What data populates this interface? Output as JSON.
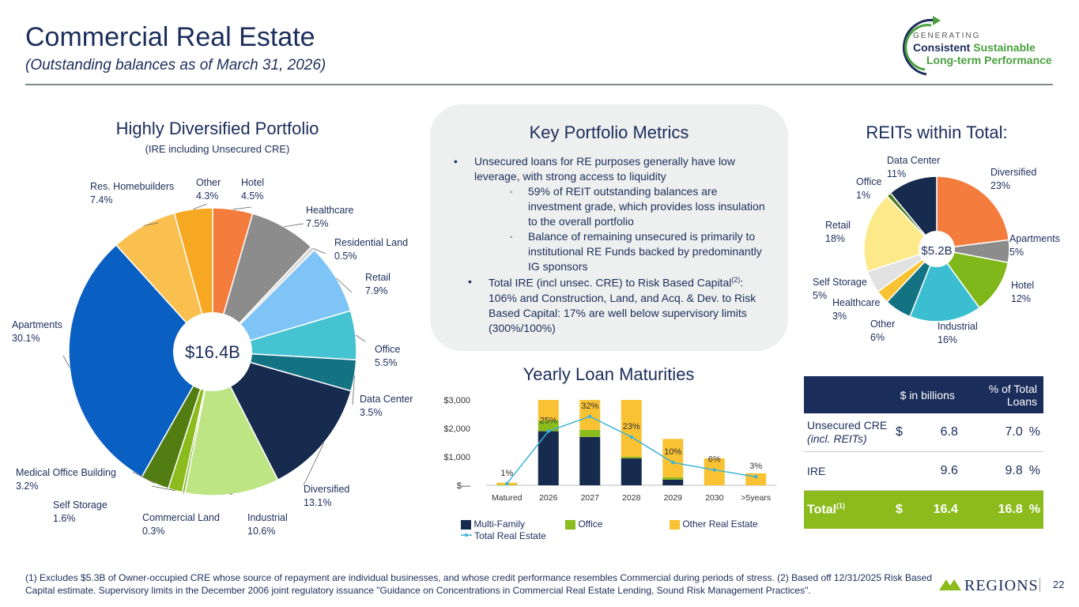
{
  "header": {
    "title": "Commercial Real Estate",
    "subtitle": "(Outstanding balances as of March 31, 2026)",
    "logo_line1": "GENERATING",
    "logo_line2a": "Consistent",
    "logo_line2b": "Sustainable",
    "logo_line3": "Long-term Performance"
  },
  "portfolio": {
    "heading": "Highly Diversified Portfolio",
    "subheading": "(IRE including Unsecured CRE)",
    "center_label": "$16.4B"
  },
  "metrics": {
    "heading": "Key Portfolio Metrics",
    "bullet1": "Unsecured loans for RE purposes generally have low leverage, with strong access to liquidity",
    "sub1": "59% of REIT outstanding balances are investment grade, which provides loss insulation to the overall portfolio",
    "sub2": "Balance of remaining unsecured is primarily to institutional RE Funds backed by predominantly IG sponsors",
    "bullet2_pre": "Total IRE (incl unsec. CRE) to Risk Based Capital",
    "bullet2_sup": "(2)",
    "bullet2_post": ": 106% and Construction, Land, and Acq. & Dev. to Risk Based Capital: 17% are well below supervisory limits (300%/100%)"
  },
  "reits": {
    "heading": "REITs within Total:",
    "center_label": "$5.2B"
  },
  "maturities": {
    "heading": "Yearly Loan Maturities",
    "legend": {
      "multifamily": "Multi-Family",
      "office": "Office",
      "other": "Other Real Estate",
      "total": "Total Real Estate"
    }
  },
  "table": {
    "col1": "$ in billions",
    "col2": "% of Total Loans",
    "rows": [
      {
        "label": "Unsecured CRE",
        "label2": "(incl. REITs)",
        "cur": "$",
        "value": "6.8",
        "pct": "7.0",
        "pct_sign": "%"
      },
      {
        "label": "IRE",
        "label2": "",
        "cur": "",
        "value": "9.6",
        "pct": "9.8",
        "pct_sign": "%"
      }
    ],
    "total": {
      "label": "Total",
      "sup": "(1)",
      "cur": "$",
      "value": "16.4",
      "pct": "16.8",
      "pct_sign": "%"
    }
  },
  "footer": {
    "footnote": "(1) Excludes $5.3B of Owner-occupied CRE whose source of repayment are individual businesses, and whose credit performance resembles Commercial during periods of stress. (2) Based off 12/31/2025 Risk Based Capital estimate. Supervisory limits in the December 2006 joint regulatory issuance \"Guidance on Concentrations in Commercial Real Estate Lending, Sound Risk Management Practices\".",
    "brand": "REGIONS",
    "page": "22"
  },
  "colors": {
    "navy": "#1b2d5a",
    "green": "#8bbb1c",
    "yellow": "#f9c233",
    "teal_line": "#3bb2d6"
  },
  "chart_data": [
    {
      "type": "pie",
      "title": "Highly Diversified Portfolio",
      "slices": [
        {
          "label": "Hotel",
          "value": 4.5,
          "color": "#f47c3c"
        },
        {
          "label": "Healthcare",
          "value": 7.5,
          "color": "#8c8c8c"
        },
        {
          "label": "Residential Land",
          "value": 0.5,
          "color": "#d9d9d9"
        },
        {
          "label": "Retail",
          "value": 7.9,
          "color": "#7fc4f7"
        },
        {
          "label": "Office",
          "value": 5.5,
          "color": "#45c3d1"
        },
        {
          "label": "Data Center",
          "value": 3.5,
          "color": "#147383"
        },
        {
          "label": "Diversified",
          "value": 13.1,
          "color": "#172b4f"
        },
        {
          "label": "Industrial",
          "value": 10.6,
          "color": "#bde584"
        },
        {
          "label": "Commercial Land",
          "value": 0.3,
          "color": "#7faa23"
        },
        {
          "label": "Self Storage",
          "value": 1.6,
          "color": "#8bbb1c"
        },
        {
          "label": "Medical Office Building",
          "value": 3.2,
          "color": "#527d12"
        },
        {
          "label": "Apartments",
          "value": 30.1,
          "color": "#0a5fc2"
        },
        {
          "label": "Res. Homebuilders",
          "value": 7.4,
          "color": "#f9c04f"
        },
        {
          "label": "Other",
          "value": 4.3,
          "color": "#f7a823"
        }
      ]
    },
    {
      "type": "pie",
      "title": "REITs within Total:",
      "slices": [
        {
          "label": "Diversified",
          "value": 23,
          "color": "#f47c3c"
        },
        {
          "label": "Apartments",
          "value": 5,
          "color": "#8c8c8c"
        },
        {
          "label": "Hotel",
          "value": 12,
          "color": "#80b71b"
        },
        {
          "label": "Industrial",
          "value": 16,
          "color": "#3bbfd0"
        },
        {
          "label": "Other",
          "value": 6,
          "color": "#147383"
        },
        {
          "label": "Healthcare",
          "value": 3,
          "color": "#f9c233"
        },
        {
          "label": "Self Storage",
          "value": 5,
          "color": "#e2e2e2"
        },
        {
          "label": "Retail",
          "value": 18,
          "color": "#fbe98a"
        },
        {
          "label": "Office",
          "value": 1,
          "color": "#4c7a1c"
        },
        {
          "label": "Data Center",
          "value": 11,
          "color": "#172b4f"
        }
      ]
    },
    {
      "type": "bar",
      "title": "Yearly Loan Maturities",
      "categories": [
        "Matured",
        "2026",
        "2027",
        "2028",
        "2029",
        "2030",
        ">5years"
      ],
      "ylim": [
        0,
        3000
      ],
      "yticks": [
        "$—",
        "$1,000",
        "$2,000",
        "$3,000"
      ],
      "series": [
        {
          "name": "Multi-Family",
          "values": [
            0,
            1900,
            1700,
            950,
            200,
            0,
            0
          ],
          "color": "#172b4f"
        },
        {
          "name": "Office",
          "values": [
            20,
            380,
            250,
            50,
            80,
            0,
            0
          ],
          "color": "#8bbb1c"
        },
        {
          "name": "Other Real Estate",
          "values": [
            70,
            720,
            1050,
            2000,
            1350,
            950,
            420
          ],
          "color": "#f9c233"
        }
      ],
      "line": {
        "name": "Total Real Estate",
        "values": [
          60,
          1900,
          2420,
          1700,
          800,
          540,
          300
        ],
        "color": "#3bb2d6"
      },
      "data_labels": [
        "1%",
        "25%",
        "32%",
        "23%",
        "10%",
        "6%",
        "3%"
      ]
    }
  ]
}
